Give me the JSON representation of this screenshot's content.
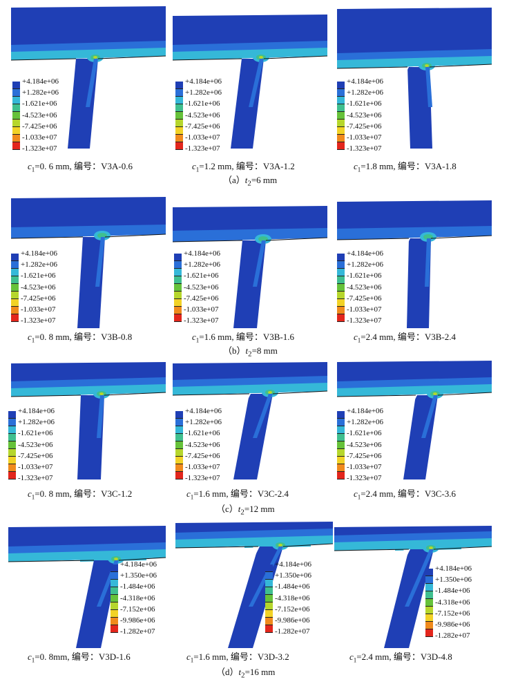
{
  "legend_sets": {
    "abc": [
      "+4.184e+06",
      "+1.282e+06",
      "-1.621e+06",
      "-4.523e+06",
      "-7.425e+06",
      "-1.033e+07",
      "-1.323e+07"
    ],
    "d": [
      "+4.184e+06",
      "+1.350e+06",
      "-1.484e+06",
      "-4.318e+06",
      "-7.152e+06",
      "-9.986e+06",
      "-1.282e+07"
    ]
  },
  "legend_colors": [
    "#1f3fb5",
    "#2a6fd8",
    "#35b8d8",
    "#3fbf8f",
    "#66c23a",
    "#b6d62c",
    "#f2d226",
    "#f08a1c",
    "#e3261c"
  ],
  "groups": [
    {
      "title": "（a）",
      "t_label": "t",
      "t_sub": "2",
      "t_value": "=6 mm",
      "panels": [
        {
          "c_label": "c",
          "c_sub": "1",
          "text": "=0. 6 mm, 编号：V3A-0.6"
        },
        {
          "c_label": "c",
          "c_sub": "1",
          "text": "=1.2 mm, 编号：V3A-1.2"
        },
        {
          "c_label": "c",
          "c_sub": "1",
          "text": "=1.8 mm, 编号：V3A-1.8"
        }
      ]
    },
    {
      "title": "（b）",
      "t_label": "t",
      "t_sub": "2",
      "t_value": "=8 mm",
      "panels": [
        {
          "c_label": "c",
          "c_sub": "1",
          "text": "=0. 8 mm, 编号：V3B-0.8"
        },
        {
          "c_label": "c",
          "c_sub": "1",
          "text": "=1.6 mm, 编号：V3B-1.6"
        },
        {
          "c_label": "c",
          "c_sub": "1",
          "text": "=2.4 mm, 编号：V3B-2.4"
        }
      ]
    },
    {
      "title": "（c）",
      "t_label": "t",
      "t_sub": "2",
      "t_value": "=12 mm",
      "panels": [
        {
          "c_label": "c",
          "c_sub": "1",
          "text": "=0. 8 mm, 编号：V3C-1.2"
        },
        {
          "c_label": "c",
          "c_sub": "1",
          "text": "=1.6 mm, 编号：V3C-2.4"
        },
        {
          "c_label": "c",
          "c_sub": "1",
          "text": "=2.4 mm, 编号：V3C-3.6"
        }
      ]
    },
    {
      "title": "（d）",
      "t_label": "t",
      "t_sub": "2",
      "t_value": "=16 mm",
      "panels": [
        {
          "c_label": "c",
          "c_sub": "1",
          "text": "=0. 8mm, 编号：V3D-1.6"
        },
        {
          "c_label": "c",
          "c_sub": "1",
          "text": "=1.6 mm, 编号：V3D-3.2"
        },
        {
          "c_label": "c",
          "c_sub": "1",
          "text": "=2.4 mm, 编号：V3D-4.8"
        }
      ]
    }
  ]
}
